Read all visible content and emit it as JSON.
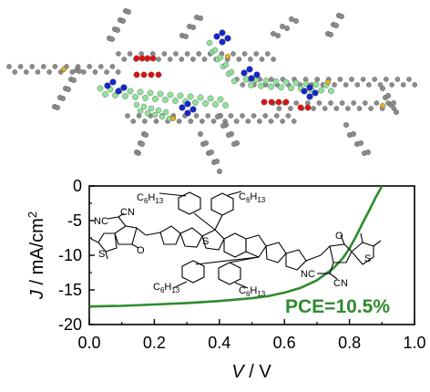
{
  "chart_data": {
    "type": "line",
    "xlabel_italic": "V",
    "xlabel_unit": " / V",
    "ylabel_italic": "J",
    "ylabel_unit": " / mA/cm",
    "ylabel_sup": "2",
    "xlim": [
      0.0,
      1.0
    ],
    "ylim": [
      -20,
      0
    ],
    "xticks": [
      0.0,
      0.2,
      0.4,
      0.6,
      0.8,
      1.0
    ],
    "xtick_labels": [
      "0.0",
      "0.2",
      "0.4",
      "0.6",
      "0.8",
      "1.0"
    ],
    "yticks": [
      0,
      -5,
      -10,
      -15,
      -20
    ],
    "ytick_labels": [
      "0",
      "-5",
      "-10",
      "-15",
      "-20"
    ],
    "annotation": "PCE=10.5%",
    "series": [
      {
        "color": "#2e8b2e",
        "x": [
          0.0,
          0.1,
          0.2,
          0.3,
          0.4,
          0.5,
          0.55,
          0.6,
          0.65,
          0.7,
          0.75,
          0.78,
          0.8,
          0.82,
          0.84,
          0.86,
          0.88,
          0.9
        ],
        "y": [
          -17.4,
          -17.3,
          -17.1,
          -16.9,
          -16.6,
          -16.2,
          -15.9,
          -15.4,
          -14.7,
          -13.6,
          -11.9,
          -10.4,
          -9.0,
          -7.3,
          -5.4,
          -3.6,
          -1.7,
          0.0
        ]
      }
    ]
  },
  "molecule": {
    "alkyl_top_left": "C",
    "alkyl_top_left_sub": "6",
    "alkyl_top_left_h": "H",
    "alkyl_top_left_sub2": "13",
    "alkyl_top_right": "C",
    "alkyl_top_right_sub": "6",
    "alkyl_top_right_h": "H",
    "alkyl_top_right_sub2": "13",
    "alkyl_bottom_left": "C",
    "alkyl_bottom_left_sub": "6",
    "alkyl_bottom_left_h": "H",
    "alkyl_bottom_left_sub2": "13",
    "alkyl_bottom_right": "C",
    "alkyl_bottom_right_sub": "6",
    "alkyl_bottom_right_h": "H",
    "alkyl_bottom_right_sub2": "13",
    "nc_left": "NC",
    "cn_left": "CN",
    "o_left": "O",
    "s_left": "S",
    "nc_right": "NC",
    "cn_right": "CN",
    "o_right": "O",
    "s_right": "S",
    "s_core": "S"
  },
  "colors": {
    "curve": "#2e8b2e",
    "atom_grey": "#8c8c8c",
    "atom_red": "#dd1111",
    "atom_blue": "#1428c8",
    "atom_green": "#8fe39a",
    "atom_yellow": "#e0b020"
  }
}
